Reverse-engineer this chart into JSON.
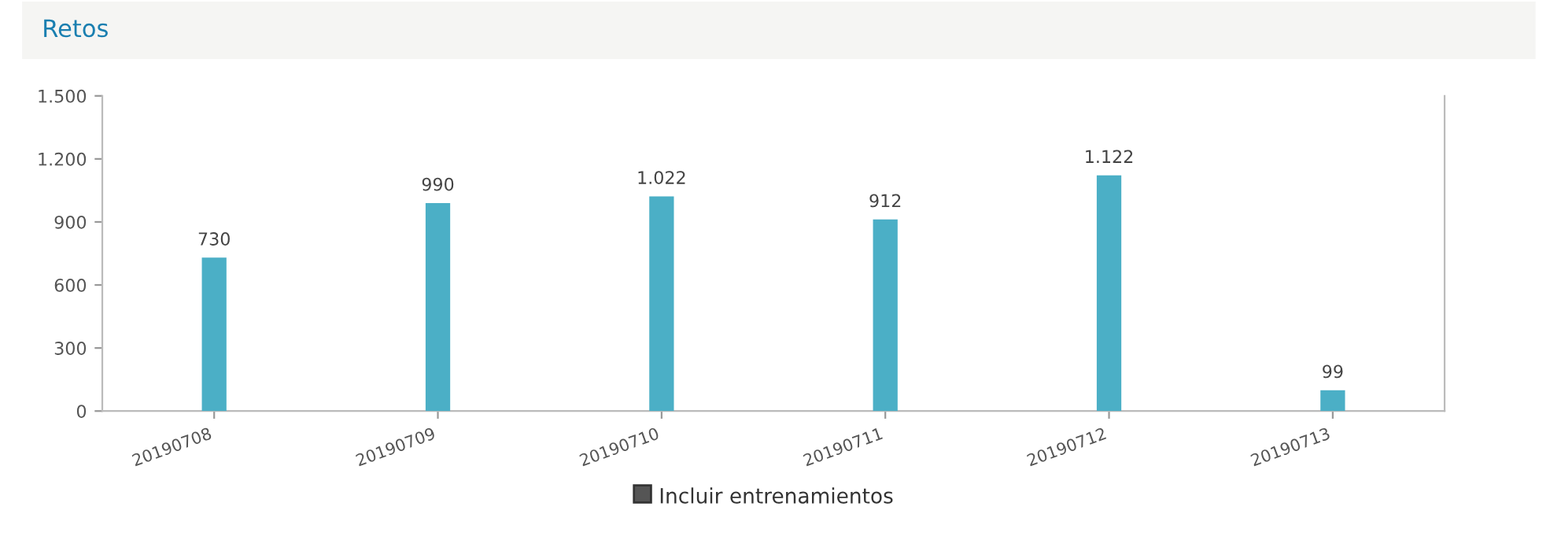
{
  "chart_data": {
    "type": "bar",
    "title": "Retos",
    "categories": [
      "20190708",
      "20190709",
      "20190710",
      "20190711",
      "20190712",
      "20190713"
    ],
    "series": [
      {
        "color": "#4bafc6",
        "values": [
          730,
          990,
          1022,
          912,
          1122,
          99
        ],
        "value_labels": [
          "730",
          "990",
          "1.022",
          "912",
          "1.122",
          "99"
        ]
      }
    ],
    "ylim": [
      0,
      1500
    ],
    "yticks": [
      0,
      300,
      600,
      900,
      {
        "value": 1200,
        "label": "1.200"
      },
      {
        "value": 1500,
        "label": "1.500"
      }
    ],
    "annotations": [
      "Incluir entrenamientos"
    ],
    "grid": false,
    "legend": false
  }
}
